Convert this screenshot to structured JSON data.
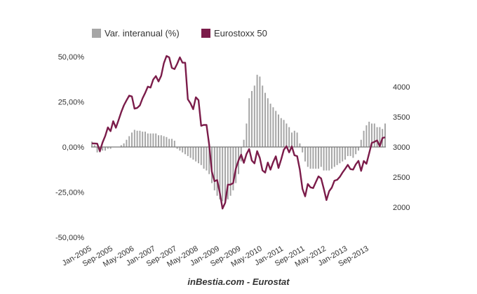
{
  "chart_data": {
    "type": "bar+line",
    "title": "",
    "footer": "inBestia.com - Eurostat",
    "legend_position": "top",
    "x_start": "Jan-2005",
    "x_end": "Mar-2014",
    "x_frequency": "monthly",
    "x_tick_labels": [
      "Jan-2005",
      "Sep-2005",
      "May-2006",
      "Jan-2007",
      "Sep-2007",
      "May-2008",
      "Jan-2009",
      "Sep-2009",
      "May-2010",
      "Jan-2011",
      "Sep-2011",
      "May-2012",
      "Jan-2013",
      "Sep-2013"
    ],
    "y_left": {
      "ylim": [
        -50,
        50
      ],
      "ticks": [
        50,
        25,
        0,
        -25,
        -50
      ],
      "tick_labels": [
        "50,00%",
        "25,00%",
        "0,00%",
        "-25,00%",
        "-50,00%"
      ]
    },
    "y_right": {
      "ylim": [
        1500,
        4500
      ],
      "ticks": [
        4000,
        3500,
        3000,
        2500,
        2000
      ],
      "tick_labels": [
        "4000",
        "3500",
        "3000",
        "2500",
        "2000"
      ]
    },
    "series": [
      {
        "name": "Var. interanual (%)",
        "type": "bar",
        "axis": "left",
        "color": "#a6a6a6",
        "values": [
          3,
          1,
          -3,
          -3,
          -2,
          -2,
          -1,
          -1,
          0,
          0,
          0,
          1,
          2,
          4,
          6,
          8,
          9.5,
          9,
          9,
          8.5,
          8.5,
          7.5,
          7.5,
          7.5,
          7.5,
          6.5,
          6.5,
          6,
          5.5,
          4.5,
          4.5,
          3.5,
          -1,
          -2,
          -3,
          -4,
          -5,
          -6,
          -7,
          -8,
          -9,
          -10,
          -12,
          -13,
          -15,
          -20,
          -24,
          -27,
          -29,
          -30,
          -30,
          -29,
          -27,
          -24,
          -20,
          -15,
          -8,
          4,
          13,
          27,
          31,
          34,
          40,
          39,
          34,
          30,
          27,
          24,
          22,
          20,
          18,
          16,
          15,
          13,
          11,
          8,
          9,
          8,
          2,
          -3,
          -8,
          -11,
          -12,
          -12,
          -12,
          -12,
          -11,
          -13,
          -13,
          -13,
          -12,
          -11,
          -10,
          -9,
          -8,
          -7,
          -5,
          -5,
          -6,
          -4,
          -2,
          4,
          9,
          12,
          14,
          13,
          13,
          11,
          11,
          10,
          13
        ]
      },
      {
        "name": "Eurostoxx 50",
        "type": "line",
        "axis": "right",
        "color": "#7b1c4a",
        "values": [
          3060,
          3058,
          3056,
          2930,
          3076,
          3182,
          3326,
          3263,
          3429,
          3320,
          3447,
          3579,
          3692,
          3775,
          3853,
          3839,
          3637,
          3649,
          3692,
          3808,
          3899,
          4004,
          3987,
          4120,
          4178,
          4088,
          4182,
          4392,
          4512,
          4489,
          4315,
          4294,
          4382,
          4490,
          4400,
          4400,
          3792,
          3724,
          3628,
          3826,
          3778,
          3352,
          3367,
          3366,
          3038,
          2591,
          2431,
          2451,
          2237,
          1977,
          2072,
          2375,
          2376,
          2401,
          2639,
          2775,
          2873,
          2737,
          2882,
          2966,
          2776,
          2728,
          2931,
          2817,
          2610,
          2574,
          2742,
          2623,
          2748,
          2845,
          2651,
          2793,
          2954,
          3013,
          2911,
          3011,
          2862,
          2849,
          2627,
          2303,
          2180,
          2386,
          2330,
          2317,
          2416,
          2512,
          2477,
          2306,
          2119,
          2265,
          2326,
          2441,
          2455,
          2503,
          2575,
          2636,
          2703,
          2633,
          2625,
          2712,
          2770,
          2603,
          2768,
          2721,
          2893,
          3068,
          3086,
          3109,
          3013,
          3149,
          3162
        ]
      }
    ]
  }
}
